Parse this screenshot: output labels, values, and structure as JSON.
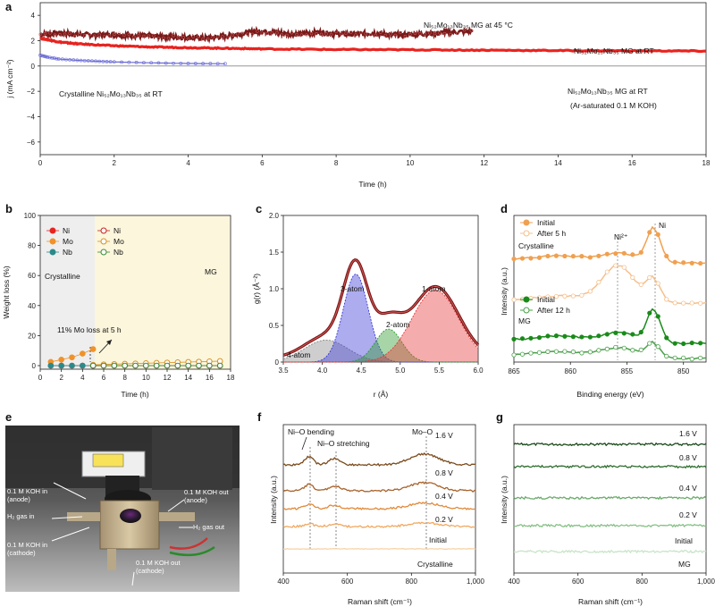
{
  "panel_labels": {
    "a": "a",
    "b": "b",
    "c": "c",
    "d": "d",
    "e": "e",
    "f": "f",
    "g": "g"
  },
  "panel_a": {
    "xlabel": "Time (h)",
    "ylabel": "j (mA cm⁻²)",
    "xticks": [
      "0",
      "2",
      "4",
      "6",
      "8",
      "10",
      "12",
      "14",
      "16",
      "18"
    ],
    "yticks": [
      "4",
      "2",
      "0",
      "−2",
      "−4",
      "−6"
    ],
    "annotations": {
      "mg45": "Ni₅₂Mo₁₃Nb₃₅ MG at 45 °C",
      "mgrt": "Ni₅₂Mo₁₃Nb₃₅ MG at RT",
      "cryst": "Crystalline Ni₅₂Mo₁₃Nb₃₅ at RT",
      "ar1": "Ni₅₂Mo₁₃Nb₃₅ MG at RT",
      "ar2": "(Ar-saturated 0.1 M KOH)"
    }
  },
  "panel_b": {
    "xlabel": "Time (h)",
    "ylabel": "Weight loss (%)",
    "xticks": [
      "0",
      "2",
      "4",
      "6",
      "8",
      "10",
      "12",
      "14",
      "16",
      "18"
    ],
    "yticks": [
      "100",
      "80",
      "60",
      "40",
      "20",
      "0"
    ],
    "legend": [
      "Ni",
      "Mo",
      "Nb",
      "Ni",
      "Mo",
      "Nb"
    ],
    "region_crystalline": "Crystalline",
    "region_mg": "MG",
    "annotation": "11% Mo loss at 5 h"
  },
  "panel_c": {
    "xlabel": "r (Å)",
    "ylabel": "g(r) (Å⁻²)",
    "xticks": [
      "3.5",
      "4.0",
      "4.5",
      "5.0",
      "5.5",
      "6.0"
    ],
    "yticks": [
      "2.0",
      "1.5",
      "1.0",
      "0.5",
      "0"
    ],
    "peaks": [
      "1-atom",
      "2-atom",
      "3-atom",
      "4-atom"
    ]
  },
  "panel_d": {
    "xlabel": "Binding energy (eV)",
    "ylabel": "Intensity (a.u.)",
    "xticks": [
      "865",
      "860",
      "855",
      "850"
    ],
    "legend_cryst": [
      "Initial",
      "After 5 h"
    ],
    "legend_mg": [
      "Initial",
      "After 12 h"
    ],
    "group_cryst": "Crystalline",
    "group_mg": "MG",
    "peak_ni2": "Ni²⁺",
    "peak_ni": "Ni"
  },
  "panel_e": {
    "labels": {
      "koh_in_anode": "0.1 M KOH in\n(anode)",
      "h2_in": "H₂ gas in",
      "koh_in_cathode": "0.1 M KOH in\n(cathode)",
      "koh_out_anode": "0.1 M KOH out\n(anode)",
      "h2_out": "H₂ gas out",
      "koh_out_cathode": "0.1 M KOH out\n(cathode)"
    }
  },
  "panel_f": {
    "xlabel": "Raman shift (cm⁻¹)",
    "ylabel": "Intensity (a.u.)",
    "xticks": [
      "400",
      "600",
      "800",
      "1,000"
    ],
    "traces": [
      "1.6 V",
      "0.8 V",
      "0.4 V",
      "0.2 V",
      "Initial"
    ],
    "sample": "Crystalline",
    "bands": {
      "bending": "Ni–O bending",
      "stretching": "Ni–O stretching",
      "moo": "Mo–O"
    }
  },
  "panel_g": {
    "xlabel": "Raman shift (cm⁻¹)",
    "ylabel": "Intensity (a.u.)",
    "xticks": [
      "400",
      "600",
      "800",
      "1,000"
    ],
    "traces": [
      "1.6 V",
      "0.8 V",
      "0.4 V",
      "0.2 V",
      "Initial"
    ],
    "sample": "MG"
  },
  "chart_data": [
    {
      "panel": "a",
      "type": "line",
      "xlabel": "Time (h)",
      "ylabel": "j (mA cm⁻²)",
      "xlim": [
        0,
        18
      ],
      "ylim": [
        -7,
        5
      ],
      "series": [
        {
          "name": "Ni₅₂Mo₁₃Nb₃₅ MG at 45 °C",
          "color": "#7a1a1a",
          "x": [
            0,
            0.5,
            1,
            1.5,
            2,
            2.5,
            3,
            3.5,
            4,
            4.5,
            5,
            5.5,
            6,
            6.5,
            7,
            7.5,
            8,
            8.5,
            9,
            9.5,
            10,
            10.5,
            11,
            11.7
          ],
          "y": [
            2.5,
            2.6,
            2.5,
            2.45,
            2.5,
            2.4,
            2.35,
            2.3,
            2.25,
            2.2,
            2.35,
            2.6,
            2.75,
            2.6,
            2.5,
            2.65,
            2.55,
            2.5,
            2.6,
            2.45,
            2.5,
            2.55,
            2.65,
            2.75
          ]
        },
        {
          "name": "Ni₅₂Mo₁₃Nb₃₅ MG at RT",
          "color": "#e8231f",
          "x": [
            0,
            0.5,
            1,
            2,
            3,
            4,
            5,
            6,
            8,
            10,
            12,
            14,
            16,
            18
          ],
          "y": [
            2.2,
            1.9,
            1.75,
            1.6,
            1.5,
            1.45,
            1.4,
            1.35,
            1.3,
            1.28,
            1.25,
            1.22,
            1.2,
            1.18
          ]
        },
        {
          "name": "Crystalline Ni₅₂Mo₁₃Nb₃₅ at RT",
          "color": "#6a6ad6",
          "x": [
            0,
            0.2,
            0.5,
            1,
            1.5,
            2,
            3,
            4,
            5
          ],
          "y": [
            0.85,
            0.7,
            0.55,
            0.45,
            0.38,
            0.32,
            0.25,
            0.2,
            0.18
          ]
        },
        {
          "name": "Ni₅₂Mo₁₃Nb₃₅ MG at RT (Ar-saturated 0.1 M KOH)",
          "color": "#888888",
          "x": [
            0,
            18
          ],
          "y": [
            0,
            0
          ]
        }
      ]
    },
    {
      "panel": "b",
      "type": "scatter",
      "xlabel": "Time (h)",
      "ylabel": "Weight loss (%)",
      "xlim": [
        0,
        18
      ],
      "ylim": [
        0,
        100
      ],
      "series": [
        {
          "name": "Ni",
          "group": "Crystalline",
          "color": "#e8231f",
          "filled": true,
          "x": [
            1,
            2,
            3,
            4,
            5
          ],
          "y": [
            0,
            0,
            0,
            0,
            0
          ]
        },
        {
          "name": "Mo",
          "group": "Crystalline",
          "color": "#f0922b",
          "filled": true,
          "x": [
            1,
            2,
            3,
            4,
            5
          ],
          "y": [
            2.5,
            4,
            5.5,
            8,
            11
          ]
        },
        {
          "name": "Nb",
          "group": "Crystalline",
          "color": "#2a8a8a",
          "filled": true,
          "x": [
            1,
            2,
            3,
            4,
            5
          ],
          "y": [
            0,
            0,
            0,
            0,
            0
          ]
        },
        {
          "name": "Ni",
          "group": "MG",
          "color": "#c42020",
          "filled": false,
          "x": [
            5,
            6,
            7,
            8,
            9,
            10,
            11,
            12,
            13,
            14,
            15,
            16,
            17
          ],
          "y": [
            0,
            0,
            0,
            0,
            0,
            0,
            0,
            0,
            0,
            0,
            0,
            0,
            0
          ]
        },
        {
          "name": "Mo",
          "group": "MG",
          "color": "#d99020",
          "filled": false,
          "x": [
            5,
            6,
            7,
            8,
            9,
            10,
            11,
            12,
            13,
            14,
            15,
            16,
            17
          ],
          "y": [
            0.5,
            0.8,
            1,
            1.2,
            1.4,
            1.6,
            1.8,
            2,
            2.2,
            2.4,
            2.6,
            2.8,
            3
          ]
        },
        {
          "name": "Nb",
          "group": "MG",
          "color": "#3a8a3a",
          "filled": false,
          "x": [
            5,
            6,
            7,
            8,
            9,
            10,
            11,
            12,
            13,
            14,
            15,
            16,
            17
          ],
          "y": [
            0,
            0,
            0,
            0,
            0,
            0,
            0,
            0,
            0,
            0,
            0,
            0,
            0
          ]
        }
      ]
    },
    {
      "panel": "c",
      "type": "area",
      "xlabel": "r (Å)",
      "ylabel": "g(r) (Å⁻²)",
      "xlim": [
        3.5,
        6.0
      ],
      "ylim": [
        0,
        2.0
      ],
      "peaks": [
        {
          "name": "4-atom",
          "center": 4.05,
          "height": 0.3,
          "width": 0.28,
          "color": "#8a8a8a"
        },
        {
          "name": "3-atom",
          "center": 4.43,
          "height": 1.2,
          "width": 0.16,
          "color": "#3a3ad6"
        },
        {
          "name": "2-atom",
          "center": 4.85,
          "height": 0.45,
          "width": 0.17,
          "color": "#2e9a2e"
        },
        {
          "name": "1-atom",
          "center": 5.45,
          "height": 0.98,
          "width": 0.3,
          "color": "#e83a3a"
        }
      ]
    },
    {
      "panel": "d",
      "type": "line",
      "xlabel": "Binding energy (eV)",
      "ylabel": "Intensity (a.u.)",
      "xlim": [
        865,
        848
      ],
      "series": [
        "Crystalline Initial",
        "Crystalline After 5 h",
        "MG Initial",
        "MG After 12 h"
      ]
    },
    {
      "panel": "f",
      "type": "line",
      "xlabel": "Raman shift (cm⁻¹)",
      "ylabel": "Intensity (a.u.)",
      "xlim": [
        400,
        1000
      ],
      "series": [
        "1.6 V",
        "0.8 V",
        "0.4 V",
        "0.2 V",
        "Initial"
      ]
    },
    {
      "panel": "g",
      "type": "line",
      "xlabel": "Raman shift (cm⁻¹)",
      "ylabel": "Intensity (a.u.)",
      "xlim": [
        400,
        1000
      ],
      "series": [
        "1.6 V",
        "0.8 V",
        "0.4 V",
        "0.2 V",
        "Initial"
      ]
    }
  ]
}
